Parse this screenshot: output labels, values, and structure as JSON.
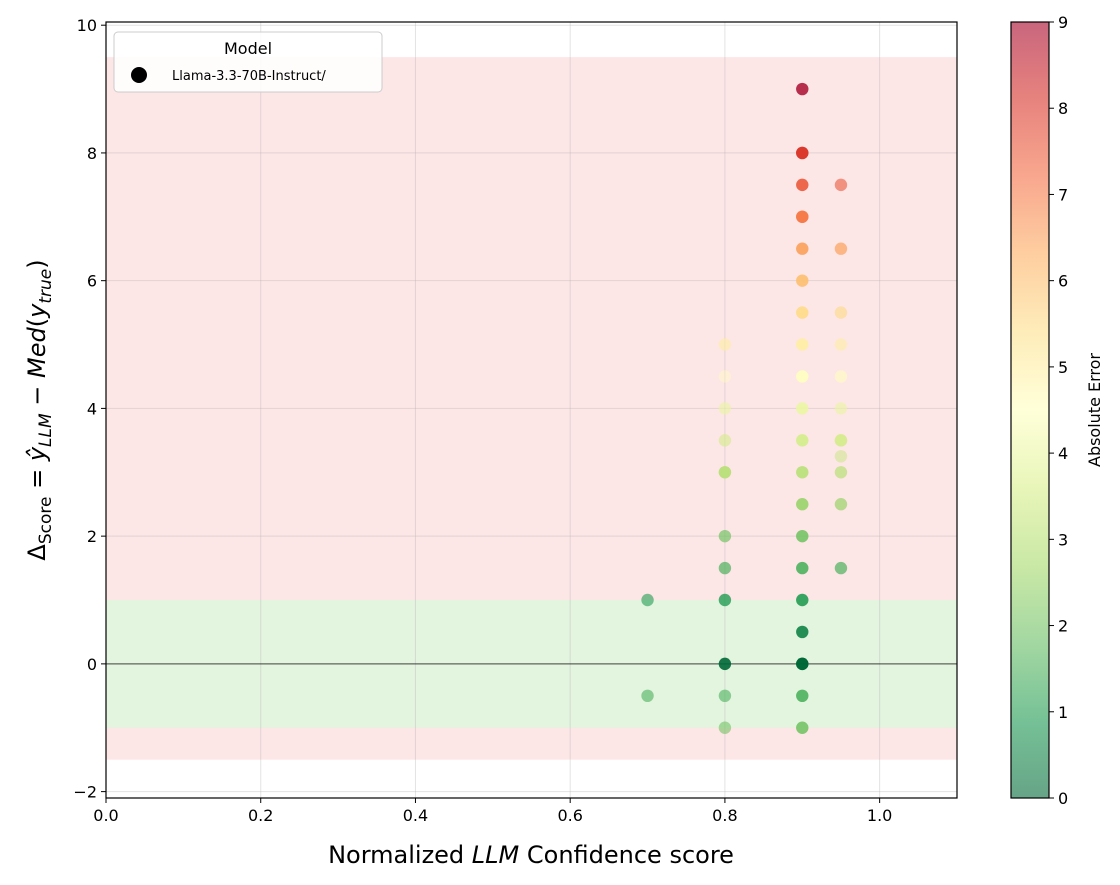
{
  "chart_data": {
    "type": "scatter",
    "title": "",
    "xlabel_prefix": "Normalized ",
    "xlabel_italic": "LLM",
    "xlabel_suffix": " Confidence score",
    "ylabel": "Δ_Score = ŷ_LLM − Med(y_true)",
    "ylabel_parts": {
      "delta": "Δ",
      "score_sub": "Score",
      "eq": " = ",
      "yhat": "ŷ",
      "llm_sub": "LLM",
      "minus": " − ",
      "med": "Med",
      "open": "(",
      "y": "y",
      "true_sub": "true",
      "close": ")"
    },
    "xlim": [
      0.0,
      1.1
    ],
    "ylim": [
      -2.1,
      10.05
    ],
    "xticks": [
      0.0,
      0.2,
      0.4,
      0.6,
      0.8,
      1.0
    ],
    "xtick_labels": [
      "0.0",
      "0.2",
      "0.4",
      "0.6",
      "0.8",
      "1.0"
    ],
    "yticks": [
      -2,
      0,
      2,
      4,
      6,
      8,
      10
    ],
    "ytick_labels": [
      "−2",
      "0",
      "2",
      "4",
      "6",
      "8",
      "10"
    ],
    "grid": true,
    "bands": [
      {
        "name": "error-band",
        "y0": -1.5,
        "y1": 9.5,
        "color": "#fde6e6"
      },
      {
        "name": "tolerance-band",
        "y0": -1.0,
        "y1": 1.0,
        "color": "#e3f4df"
      }
    ],
    "reference_line_y": 0,
    "legend": {
      "title": "Model",
      "position": "top-left",
      "entries": [
        {
          "label": "Llama-3.3-70B-Instruct/",
          "marker_color": "#000000"
        }
      ]
    },
    "colorbar": {
      "label": "Absolute Error",
      "min": 0,
      "max": 9,
      "ticks": [
        0,
        1,
        2,
        3,
        4,
        5,
        6,
        7,
        8,
        9
      ],
      "tick_labels": [
        "0",
        "1",
        "2",
        "3",
        "4",
        "5",
        "6",
        "7",
        "8",
        "9"
      ],
      "colormap": "RdYlGn_r",
      "stops": [
        "#006837",
        "#1a9850",
        "#66bd63",
        "#a6d96a",
        "#d9ef8b",
        "#ffffbf",
        "#fee08b",
        "#fdae61",
        "#f46d43",
        "#d73027",
        "#a50026"
      ]
    },
    "series": [
      {
        "name": "Llama-3.3-70B-Instruct/",
        "x": [
          0.7,
          0.7,
          0.8,
          0.8,
          0.8,
          0.8,
          0.8,
          0.8,
          0.8,
          0.8,
          0.8,
          0.8,
          0.8,
          0.8,
          0.9,
          0.9,
          0.9,
          0.9,
          0.9,
          0.9,
          0.9,
          0.9,
          0.9,
          0.9,
          0.9,
          0.9,
          0.9,
          0.9,
          0.9,
          0.9,
          0.9,
          0.9,
          0.9,
          0.9,
          0.9,
          0.9,
          0.9,
          0.95,
          0.95,
          0.95,
          0.95,
          0.95,
          0.95,
          0.95,
          0.95,
          0.95,
          0.95,
          0.95,
          0.95
        ],
        "y": [
          1.0,
          -0.5,
          5.0,
          4.5,
          4.0,
          3.5,
          3.0,
          2.0,
          1.5,
          1.0,
          0.0,
          -0.5,
          -1.0,
          3.0,
          9.0,
          8.0,
          7.5,
          7.0,
          6.5,
          6.0,
          5.5,
          5.0,
          4.5,
          4.0,
          3.5,
          3.0,
          2.5,
          2.0,
          1.5,
          1.0,
          0.5,
          0.0,
          -0.5,
          -1.0,
          8.0,
          7.0,
          0.0,
          7.5,
          6.5,
          5.5,
          5.0,
          4.5,
          4.0,
          3.5,
          3.25,
          3.0,
          2.5,
          1.5,
          3.5
        ],
        "abs_error": [
          1.0,
          1.5,
          5.0,
          4.5,
          4.0,
          3.5,
          3.0,
          2.0,
          1.5,
          1.0,
          0.0,
          1.5,
          2.0,
          3.0,
          9.0,
          8.0,
          7.5,
          7.0,
          6.5,
          6.0,
          5.5,
          5.0,
          4.5,
          4.0,
          3.5,
          3.0,
          2.5,
          2.0,
          1.5,
          1.0,
          0.5,
          0.0,
          1.5,
          2.0,
          8.0,
          7.0,
          0.0,
          7.5,
          6.5,
          5.5,
          5.0,
          4.5,
          4.0,
          3.5,
          3.25,
          3.0,
          2.5,
          1.5,
          3.5
        ],
        "alpha": [
          0.6,
          0.6,
          0.6,
          0.4,
          0.6,
          0.6,
          0.7,
          0.7,
          0.7,
          0.8,
          0.9,
          0.6,
          0.6,
          0.7,
          0.8,
          0.9,
          0.9,
          0.9,
          0.9,
          0.9,
          0.9,
          0.9,
          0.9,
          0.9,
          0.9,
          0.9,
          0.9,
          0.9,
          0.9,
          0.9,
          0.9,
          0.9,
          0.9,
          0.9,
          0.9,
          0.9,
          0.9,
          0.6,
          0.7,
          0.6,
          0.6,
          0.6,
          0.6,
          0.7,
          0.5,
          0.7,
          0.7,
          0.7,
          0.7
        ]
      }
    ]
  }
}
